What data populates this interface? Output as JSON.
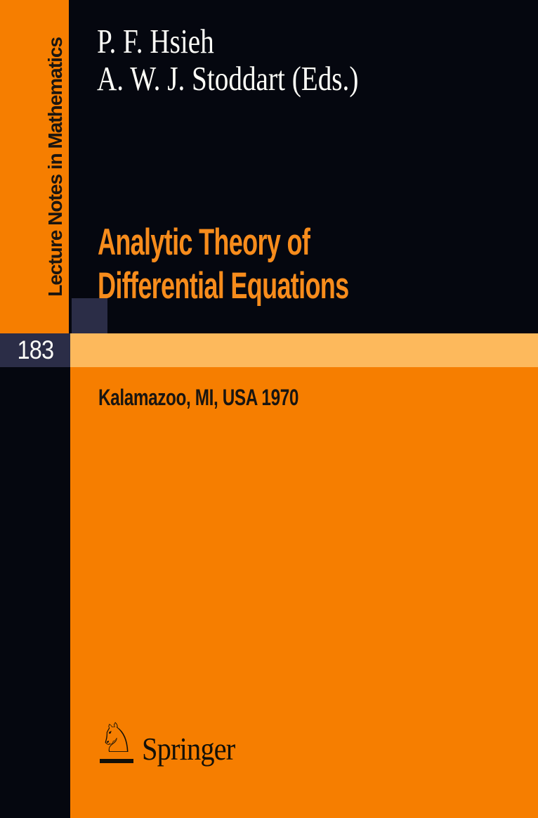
{
  "cover": {
    "series": "Lecture Notes in Mathematics",
    "volume": "183",
    "authors": [
      "P. F. Hsieh",
      "A. W. J. Stoddart (Eds.)"
    ],
    "title": [
      "Analytic Theory of",
      "Differential Equations"
    ],
    "event": "Kalamazoo, MI, USA 1970",
    "publisher": "Springer",
    "icons": {
      "springer_horse": "chess-knight-horse-logo"
    },
    "colors": {
      "cover_orange": "#F67E00",
      "highlight_band_orange": "#FDB95C",
      "plate_dark_navy": "#05070F",
      "volume_block_navy": "#2B2D47",
      "title_orange": "#F78C1C",
      "author_text_white": "#FCFCF7",
      "black_text": "#191511"
    }
  }
}
